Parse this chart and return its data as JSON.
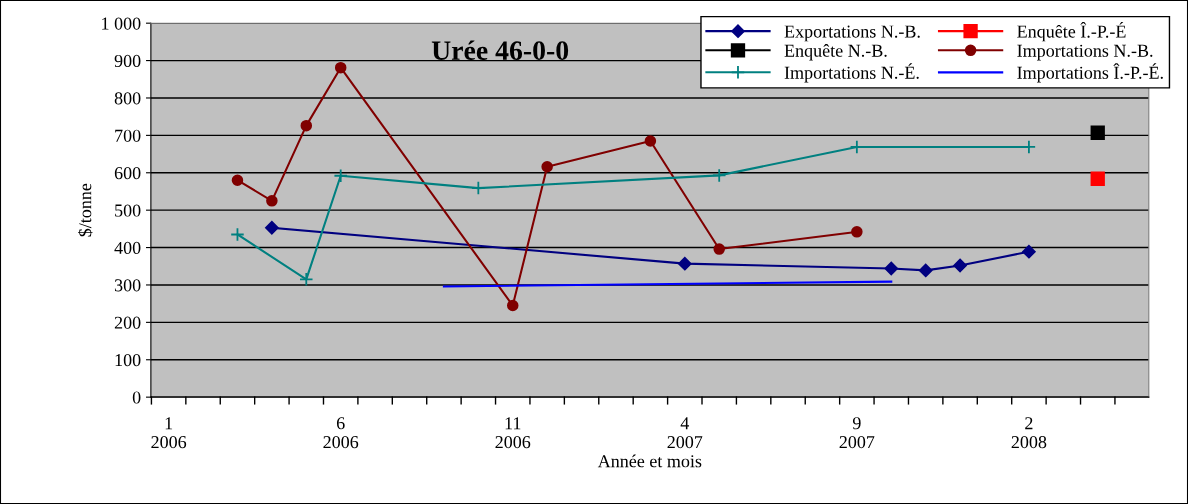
{
  "chart_data": {
    "type": "line",
    "title": "Urée 46-0-0",
    "xlabel": "Année et mois",
    "ylabel": "$/tonne",
    "xlim": [
      "2005-12-16",
      "2008-05-16"
    ],
    "xticks": [
      {
        "value": "2006-01",
        "label": "1\n2006"
      },
      {
        "value": "2006-06",
        "label": "6\n2006"
      },
      {
        "value": "2006-11",
        "label": "11\n2006"
      },
      {
        "value": "2007-04",
        "label": "4\n2007"
      },
      {
        "value": "2007-09",
        "label": "9\n2007"
      },
      {
        "value": "2008-02",
        "label": "2\n2008"
      }
    ],
    "ylim": [
      0,
      1000
    ],
    "yticks": [
      0,
      100,
      200,
      300,
      400,
      500,
      600,
      700,
      800,
      900,
      {
        "value": 1000,
        "label": "1 000"
      }
    ],
    "grid": "y",
    "legend": "top right",
    "series": [
      {
        "name": "Exportations N.-B.",
        "color": "#000080",
        "marker": "diamond",
        "x": [
          "2006-04",
          "2007-04",
          "2007-10",
          "2007-11",
          "2007-12",
          "2008-02"
        ],
        "values": [
          453,
          357,
          344,
          339,
          352,
          389
        ]
      },
      {
        "name": "Enquête Î.-P.-É",
        "color": "#ff0000",
        "marker": "square",
        "x": [
          "2008-04"
        ],
        "values": [
          584
        ]
      },
      {
        "name": "Enquête N.-B.",
        "color": "#000000",
        "marker": "square",
        "x": [
          "2008-04"
        ],
        "values": [
          707
        ]
      },
      {
        "name": "Importations N.-B.",
        "color": "#800000",
        "marker": "circle",
        "x": [
          "2006-03",
          "2006-04",
          "2006-05",
          "2006-06",
          "2006-11",
          "2006-12",
          "2007-03",
          "2007-05",
          "2007-09"
        ],
        "values": [
          580,
          525,
          726,
          881,
          245,
          616,
          685,
          396,
          442
        ]
      },
      {
        "name": "Importations N.-É.",
        "color": "#008080",
        "marker": "cross",
        "x": [
          "2006-03",
          "2006-05",
          "2006-06",
          "2006-10",
          "2007-05",
          "2007-09",
          "2008-02"
        ],
        "values": [
          435,
          315,
          592,
          559,
          593,
          669,
          669
        ]
      },
      {
        "name": "Importations Î.-P.-É.",
        "color": "#0000ff",
        "marker": "none",
        "x": [
          "2006-09",
          "2007-10"
        ],
        "values": [
          296,
          309
        ]
      }
    ]
  }
}
